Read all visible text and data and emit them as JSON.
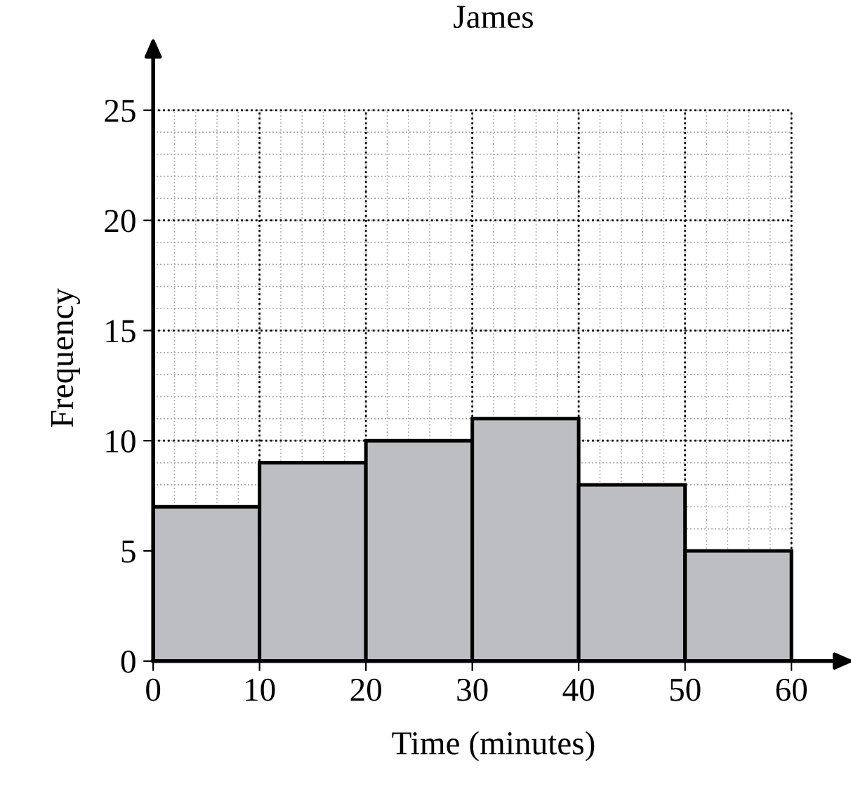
{
  "chart_data": {
    "type": "histogram",
    "title": "James",
    "xlabel": "Time (minutes)",
    "ylabel": "Frequency",
    "bins": [
      0,
      10,
      20,
      30,
      40,
      50,
      60
    ],
    "values": [
      7,
      9,
      10,
      11,
      8,
      5
    ],
    "color": "#bdbec1",
    "xlim": [
      0,
      64
    ],
    "ylim": [
      0,
      27.5
    ],
    "xticks": [
      0,
      10,
      20,
      30,
      40,
      50,
      60
    ],
    "yticks": [
      0,
      5,
      10,
      15,
      20,
      25
    ],
    "grid": true
  }
}
